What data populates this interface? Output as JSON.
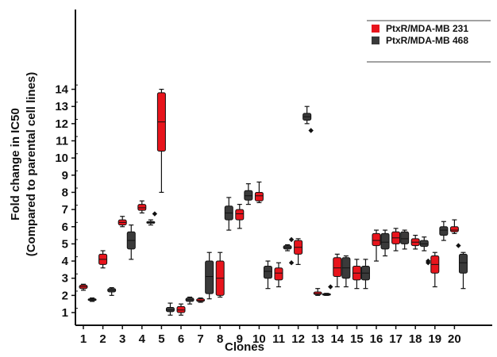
{
  "chart_data": {
    "type": "box",
    "xlabel": "Clones",
    "ylabel": "Fold change in IC50",
    "ylabel_sub": "(Compared to parental cell lines)",
    "ylim": [
      0.5,
      14.6
    ],
    "yticks": [
      1,
      2,
      3,
      4,
      5,
      6,
      7,
      8,
      9,
      10,
      11,
      12,
      13,
      14
    ],
    "categories": [
      "1",
      "2",
      "3",
      "4",
      "5",
      "6",
      "7",
      "8",
      "9",
      "10",
      "11",
      "12",
      "13",
      "14",
      "15",
      "16",
      "17",
      "18",
      "19",
      "20"
    ],
    "legend": {
      "position": "top-right",
      "entries": [
        {
          "label": "PtxR/MDA-MB 231",
          "color": "#e8141c"
        },
        {
          "label": "PtxR/MDA-MB 468",
          "color": "#3a3a3a"
        }
      ]
    },
    "boxes": [
      {
        "series": "PtxR/MDA-MB 231",
        "x": 1.0,
        "min": 2.3,
        "q1": 2.4,
        "median": 2.5,
        "q3": 2.6,
        "max": 2.65,
        "outliers": []
      },
      {
        "series": "PtxR/MDA-MB 468",
        "x": 1.45,
        "min": 1.65,
        "q1": 1.7,
        "median": 1.75,
        "q3": 1.8,
        "max": 1.85,
        "outliers": []
      },
      {
        "series": "PtxR/MDA-MB 231",
        "x": 2.0,
        "min": 3.6,
        "q1": 3.8,
        "median": 4.1,
        "q3": 4.4,
        "max": 4.6,
        "outliers": []
      },
      {
        "series": "PtxR/MDA-MB 468",
        "x": 2.45,
        "min": 2.0,
        "q1": 2.2,
        "median": 2.3,
        "q3": 2.4,
        "max": 2.45,
        "outliers": []
      },
      {
        "series": "PtxR/MDA-MB 231",
        "x": 3.0,
        "min": 6.0,
        "q1": 6.1,
        "median": 6.25,
        "q3": 6.4,
        "max": 6.6,
        "outliers": []
      },
      {
        "series": "PtxR/MDA-MB 468",
        "x": 3.45,
        "min": 4.1,
        "q1": 4.7,
        "median": 5.2,
        "q3": 5.7,
        "max": 6.1,
        "outliers": []
      },
      {
        "series": "PtxR/MDA-MB 231",
        "x": 4.0,
        "min": 6.8,
        "q1": 6.95,
        "median": 7.1,
        "q3": 7.3,
        "max": 7.5,
        "outliers": []
      },
      {
        "series": "PtxR/MDA-MB 468",
        "x": 4.45,
        "min": 6.1,
        "q1": 6.2,
        "median": 6.25,
        "q3": 6.3,
        "max": 6.4,
        "outliers": [
          6.75
        ]
      },
      {
        "series": "PtxR/MDA-MB 231",
        "x": 5.0,
        "min": 8.0,
        "q1": 10.4,
        "median": 12.1,
        "q3": 13.8,
        "max": 14.0,
        "outliers": []
      },
      {
        "series": "PtxR/MDA-MB 468",
        "x": 5.45,
        "min": 0.85,
        "q1": 1.05,
        "median": 1.15,
        "q3": 1.3,
        "max": 1.55,
        "outliers": []
      },
      {
        "series": "PtxR/MDA-MB 231",
        "x": 6.0,
        "min": 0.85,
        "q1": 1.0,
        "median": 1.15,
        "q3": 1.35,
        "max": 1.5,
        "outliers": []
      },
      {
        "series": "PtxR/MDA-MB 468",
        "x": 6.45,
        "min": 1.5,
        "q1": 1.65,
        "median": 1.75,
        "q3": 1.85,
        "max": 1.9,
        "outliers": []
      },
      {
        "series": "PtxR/MDA-MB 231",
        "x": 7.0,
        "min": 1.6,
        "q1": 1.65,
        "median": 1.7,
        "q3": 1.8,
        "max": 1.85,
        "outliers": []
      },
      {
        "series": "PtxR/MDA-MB 468",
        "x": 7.45,
        "min": 1.8,
        "q1": 2.1,
        "median": 3.1,
        "q3": 4.0,
        "max": 4.5,
        "outliers": []
      },
      {
        "series": "PtxR/MDA-MB 231",
        "x": 8.0,
        "min": 1.9,
        "q1": 2.0,
        "median": 3.0,
        "q3": 4.0,
        "max": 4.5,
        "outliers": []
      },
      {
        "series": "PtxR/MDA-MB 468",
        "x": 8.45,
        "min": 5.8,
        "q1": 6.4,
        "median": 6.8,
        "q3": 7.2,
        "max": 7.7,
        "outliers": []
      },
      {
        "series": "PtxR/MDA-MB 231",
        "x": 9.0,
        "min": 5.9,
        "q1": 6.4,
        "median": 6.75,
        "q3": 7.0,
        "max": 7.3,
        "outliers": []
      },
      {
        "series": "PtxR/MDA-MB 468",
        "x": 9.45,
        "min": 7.3,
        "q1": 7.55,
        "median": 7.8,
        "q3": 8.1,
        "max": 8.5,
        "outliers": []
      },
      {
        "series": "PtxR/MDA-MB 231",
        "x": 10.0,
        "min": 7.4,
        "q1": 7.5,
        "median": 7.8,
        "q3": 8.0,
        "max": 8.6,
        "outliers": []
      },
      {
        "series": "PtxR/MDA-MB 468",
        "x": 10.45,
        "min": 2.4,
        "q1": 3.0,
        "median": 3.4,
        "q3": 3.7,
        "max": 4.0,
        "outliers": []
      },
      {
        "series": "PtxR/MDA-MB 231",
        "x": 11.0,
        "min": 2.5,
        "q1": 2.9,
        "median": 3.3,
        "q3": 3.6,
        "max": 3.9,
        "outliers": []
      },
      {
        "series": "PtxR/MDA-MB 468",
        "x": 11.45,
        "min": 4.6,
        "q1": 4.7,
        "median": 4.8,
        "q3": 4.9,
        "max": 4.95,
        "outliers": [
          3.9,
          5.25
        ]
      },
      {
        "series": "PtxR/MDA-MB 231",
        "x": 12.0,
        "min": 3.8,
        "q1": 4.4,
        "median": 4.8,
        "q3": 5.2,
        "max": 5.3,
        "outliers": []
      },
      {
        "series": "PtxR/MDA-MB 468",
        "x": 12.45,
        "min": 12.0,
        "q1": 12.2,
        "median": 12.4,
        "q3": 12.6,
        "max": 13.0,
        "outliers": [
          11.6
        ]
      },
      {
        "series": "PtxR/MDA-MB 231",
        "x": 13.0,
        "min": 2.0,
        "q1": 2.05,
        "median": 2.1,
        "q3": 2.2,
        "max": 2.4,
        "outliers": []
      },
      {
        "series": "PtxR/MDA-MB 468",
        "x": 13.45,
        "min": 2.0,
        "q1": 2.03,
        "median": 2.06,
        "q3": 2.1,
        "max": 2.12,
        "outliers": [
          2.5
        ]
      },
      {
        "series": "PtxR/MDA-MB 231",
        "x": 14.0,
        "min": 2.5,
        "q1": 3.1,
        "median": 3.6,
        "q3": 4.2,
        "max": 4.4,
        "outliers": []
      },
      {
        "series": "PtxR/MDA-MB 468",
        "x": 14.45,
        "min": 2.5,
        "q1": 3.0,
        "median": 3.6,
        "q3": 4.2,
        "max": 4.3,
        "outliers": []
      },
      {
        "series": "PtxR/MDA-MB 231",
        "x": 15.0,
        "min": 2.4,
        "q1": 2.9,
        "median": 3.3,
        "q3": 3.7,
        "max": 4.1,
        "outliers": []
      },
      {
        "series": "PtxR/MDA-MB 468",
        "x": 15.45,
        "min": 2.4,
        "q1": 2.9,
        "median": 3.3,
        "q3": 3.7,
        "max": 4.1,
        "outliers": []
      },
      {
        "series": "PtxR/MDA-MB 231",
        "x": 16.0,
        "min": 4.0,
        "q1": 4.9,
        "median": 5.2,
        "q3": 5.6,
        "max": 5.8,
        "outliers": []
      },
      {
        "series": "PtxR/MDA-MB 468",
        "x": 16.45,
        "min": 4.3,
        "q1": 4.7,
        "median": 5.1,
        "q3": 5.6,
        "max": 5.8,
        "outliers": []
      },
      {
        "series": "PtxR/MDA-MB 231",
        "x": 17.0,
        "min": 4.6,
        "q1": 5.0,
        "median": 5.35,
        "q3": 5.7,
        "max": 5.9,
        "outliers": []
      },
      {
        "series": "PtxR/MDA-MB 468",
        "x": 17.45,
        "min": 4.7,
        "q1": 5.0,
        "median": 5.3,
        "q3": 5.7,
        "max": 5.8,
        "outliers": []
      },
      {
        "series": "PtxR/MDA-MB 231",
        "x": 18.0,
        "min": 4.7,
        "q1": 4.9,
        "median": 5.1,
        "q3": 5.3,
        "max": 5.5,
        "outliers": []
      },
      {
        "series": "PtxR/MDA-MB 468",
        "x": 18.45,
        "min": 4.6,
        "q1": 4.85,
        "median": 5.0,
        "q3": 5.2,
        "max": 5.4,
        "outliers": [
          3.9,
          4.0
        ]
      },
      {
        "series": "PtxR/MDA-MB 231",
        "x": 19.0,
        "min": 2.5,
        "q1": 3.3,
        "median": 3.8,
        "q3": 4.3,
        "max": 4.5,
        "outliers": []
      },
      {
        "series": "PtxR/MDA-MB 468",
        "x": 19.45,
        "min": 5.2,
        "q1": 5.5,
        "median": 5.8,
        "q3": 6.0,
        "max": 6.3,
        "outliers": []
      },
      {
        "series": "PtxR/MDA-MB 231",
        "x": 20.0,
        "min": 5.6,
        "q1": 5.7,
        "median": 5.8,
        "q3": 6.0,
        "max": 6.4,
        "outliers": [
          4.9
        ]
      },
      {
        "series": "PtxR/MDA-MB 468",
        "x": 20.45,
        "min": 2.4,
        "q1": 3.3,
        "median": 3.9,
        "q3": 4.4,
        "max": 4.5,
        "outliers": []
      }
    ]
  }
}
